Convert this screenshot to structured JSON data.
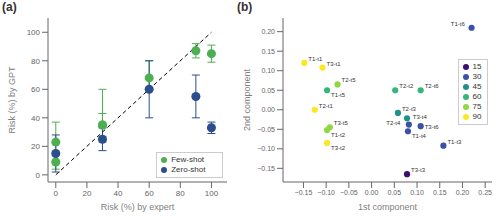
{
  "chart_data": [
    {
      "type": "scatter",
      "title": "(a)",
      "xlabel": "Risk (%) by expert",
      "ylabel": "Risk (%) by GPT",
      "xlim": [
        -5,
        110
      ],
      "ylim": [
        -5,
        110
      ],
      "xticks": [
        0,
        20,
        40,
        60,
        80,
        100
      ],
      "yticks": [
        0,
        20,
        40,
        60,
        80,
        100
      ],
      "legend": "lower right",
      "series": [
        {
          "type": "line",
          "color": "#000000",
          "line_style": "dashed",
          "x": [
            0,
            100
          ],
          "values": [
            0,
            100
          ]
        },
        {
          "name": "Few-shot",
          "type": "scatter",
          "color": "#4caf50",
          "x": [
            0,
            30,
            60,
            90,
            100
          ],
          "values": [
            23,
            35,
            68,
            87,
            85
          ],
          "error_low": [
            14,
            12,
            8,
            5,
            6
          ],
          "error_high": [
            14,
            25,
            12,
            5,
            6
          ]
        },
        {
          "type": "scatter",
          "color": "#4caf50",
          "x": [
            0,
            30
          ],
          "values": [
            9,
            35
          ],
          "error": [
            5,
            8
          ]
        },
        {
          "name": "Zero-shot",
          "type": "scatter",
          "color": "#2b4e8c",
          "x": [
            0,
            30,
            60,
            90,
            100
          ],
          "values": [
            15,
            25,
            60,
            55,
            33
          ],
          "error": [
            13,
            8,
            20,
            15,
            4
          ]
        }
      ]
    },
    {
      "type": "scatter",
      "title": "(b)",
      "xlabel": "1st component",
      "ylabel": "2nd component",
      "xlim": [
        -0.195,
        0.265
      ],
      "ylim": [
        -0.185,
        0.235
      ],
      "xticks": [
        {
          "value": -0.15,
          "label": "−0.15"
        },
        {
          "value": -0.1,
          "label": "−0.10"
        },
        {
          "value": -0.05,
          "label": "−0.05"
        },
        {
          "value": 0,
          "label": "0.00"
        },
        0.05,
        {
          "value": 0.1,
          "label": "0.10"
        },
        0.15,
        {
          "value": 0.2,
          "label": "0.20"
        },
        0.25
      ],
      "yticks": [
        {
          "value": -0.15,
          "label": "−0.15"
        },
        {
          "value": -0.1,
          "label": "−0.10"
        },
        {
          "value": -0.05,
          "label": "−0.05"
        },
        {
          "value": 0,
          "label": "0.00"
        },
        0.05,
        {
          "value": 0.1,
          "label": "0.10"
        },
        0.15,
        {
          "value": 0.2,
          "label": "0.20"
        }
      ],
      "legend": "right",
      "series": [
        {
          "name": "15",
          "color": "#3b0f70",
          "x": [
            0.078
          ],
          "values": [
            -0.165
          ],
          "labels": [
            "T3-t3"
          ]
        },
        {
          "name": "30",
          "color": "#3a52a4",
          "x": [
            0.082,
            0.08,
            0.108,
            0.158,
            0.22
          ],
          "values": [
            -0.038,
            -0.055,
            -0.042,
            -0.092,
            0.21
          ],
          "labels": [
            "T3-t4",
            "T1-t4",
            "T3-t6",
            "T1-t3",
            "T1-t6"
          ]
        },
        {
          "name": "45",
          "color": "#1f918c",
          "x": [
            0.058,
            0.078
          ],
          "values": [
            -0.008,
            -0.022
          ],
          "labels": [
            "T2-t3",
            "T2-t4"
          ]
        },
        {
          "name": "60",
          "color": "#35b779",
          "x": [
            -0.098,
            0.052,
            0.108
          ],
          "values": [
            0.05,
            0.05,
            0.05
          ],
          "labels": [
            "T1-t5",
            "T2-t2",
            "T2-t6"
          ]
        },
        {
          "name": "75",
          "color": "#8fd744",
          "x": [
            -0.075,
            -0.092,
            -0.098
          ],
          "values": [
            0.065,
            -0.045,
            -0.052
          ],
          "labels": [
            "T2-t5",
            "T3-t5",
            "T1-t2"
          ]
        },
        {
          "name": "90",
          "color": "#fde725",
          "x": [
            -0.148,
            -0.108,
            -0.125,
            -0.098
          ],
          "values": [
            0.12,
            0.108,
            0.0,
            -0.085
          ],
          "labels": [
            "T1-t1",
            "T3-t1",
            "T2-t1",
            "T3-t2"
          ]
        }
      ]
    }
  ]
}
